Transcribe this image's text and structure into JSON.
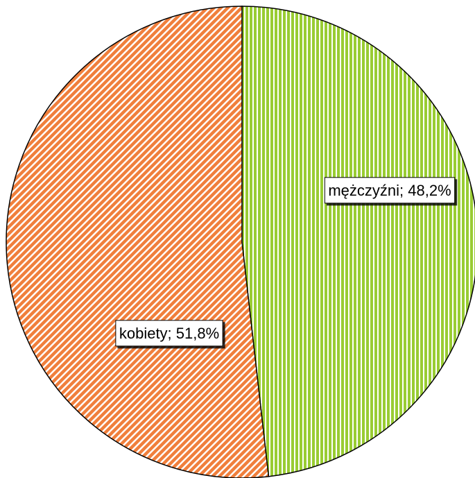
{
  "chart_data": {
    "type": "pie",
    "values": [
      48.2,
      51.8
    ],
    "value_labels": [
      "mężczyźni; 48,2%",
      "kobiety; 51,8%"
    ],
    "colors": [
      "#99cc33",
      "#f07f3c"
    ]
  }
}
